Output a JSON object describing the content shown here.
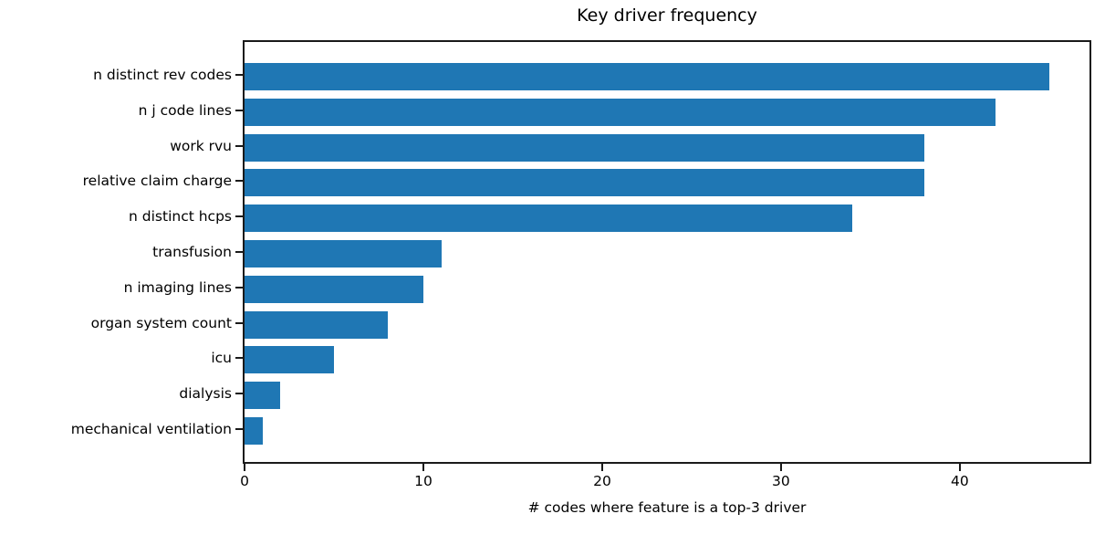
{
  "chart_data": {
    "type": "bar",
    "orientation": "horizontal",
    "title": "Key driver frequency",
    "xlabel": "# codes where feature is a top-3 driver",
    "ylabel": "",
    "categories": [
      "n distinct rev codes",
      "n j code lines",
      "work rvu",
      "relative claim charge",
      "n distinct hcps",
      "transfusion",
      "n imaging lines",
      "organ system count",
      "icu",
      "dialysis",
      "mechanical ventilation"
    ],
    "values": [
      45,
      42,
      38,
      38,
      34,
      11,
      10,
      8,
      5,
      2,
      1
    ],
    "xticks": [
      0,
      10,
      20,
      30,
      40
    ],
    "xlim": [
      0,
      47.25
    ],
    "grid": false,
    "legend": "none",
    "bar_color": "#1f77b4",
    "spine_color": "#1a1a1a",
    "background_color": "#ffffff"
  }
}
